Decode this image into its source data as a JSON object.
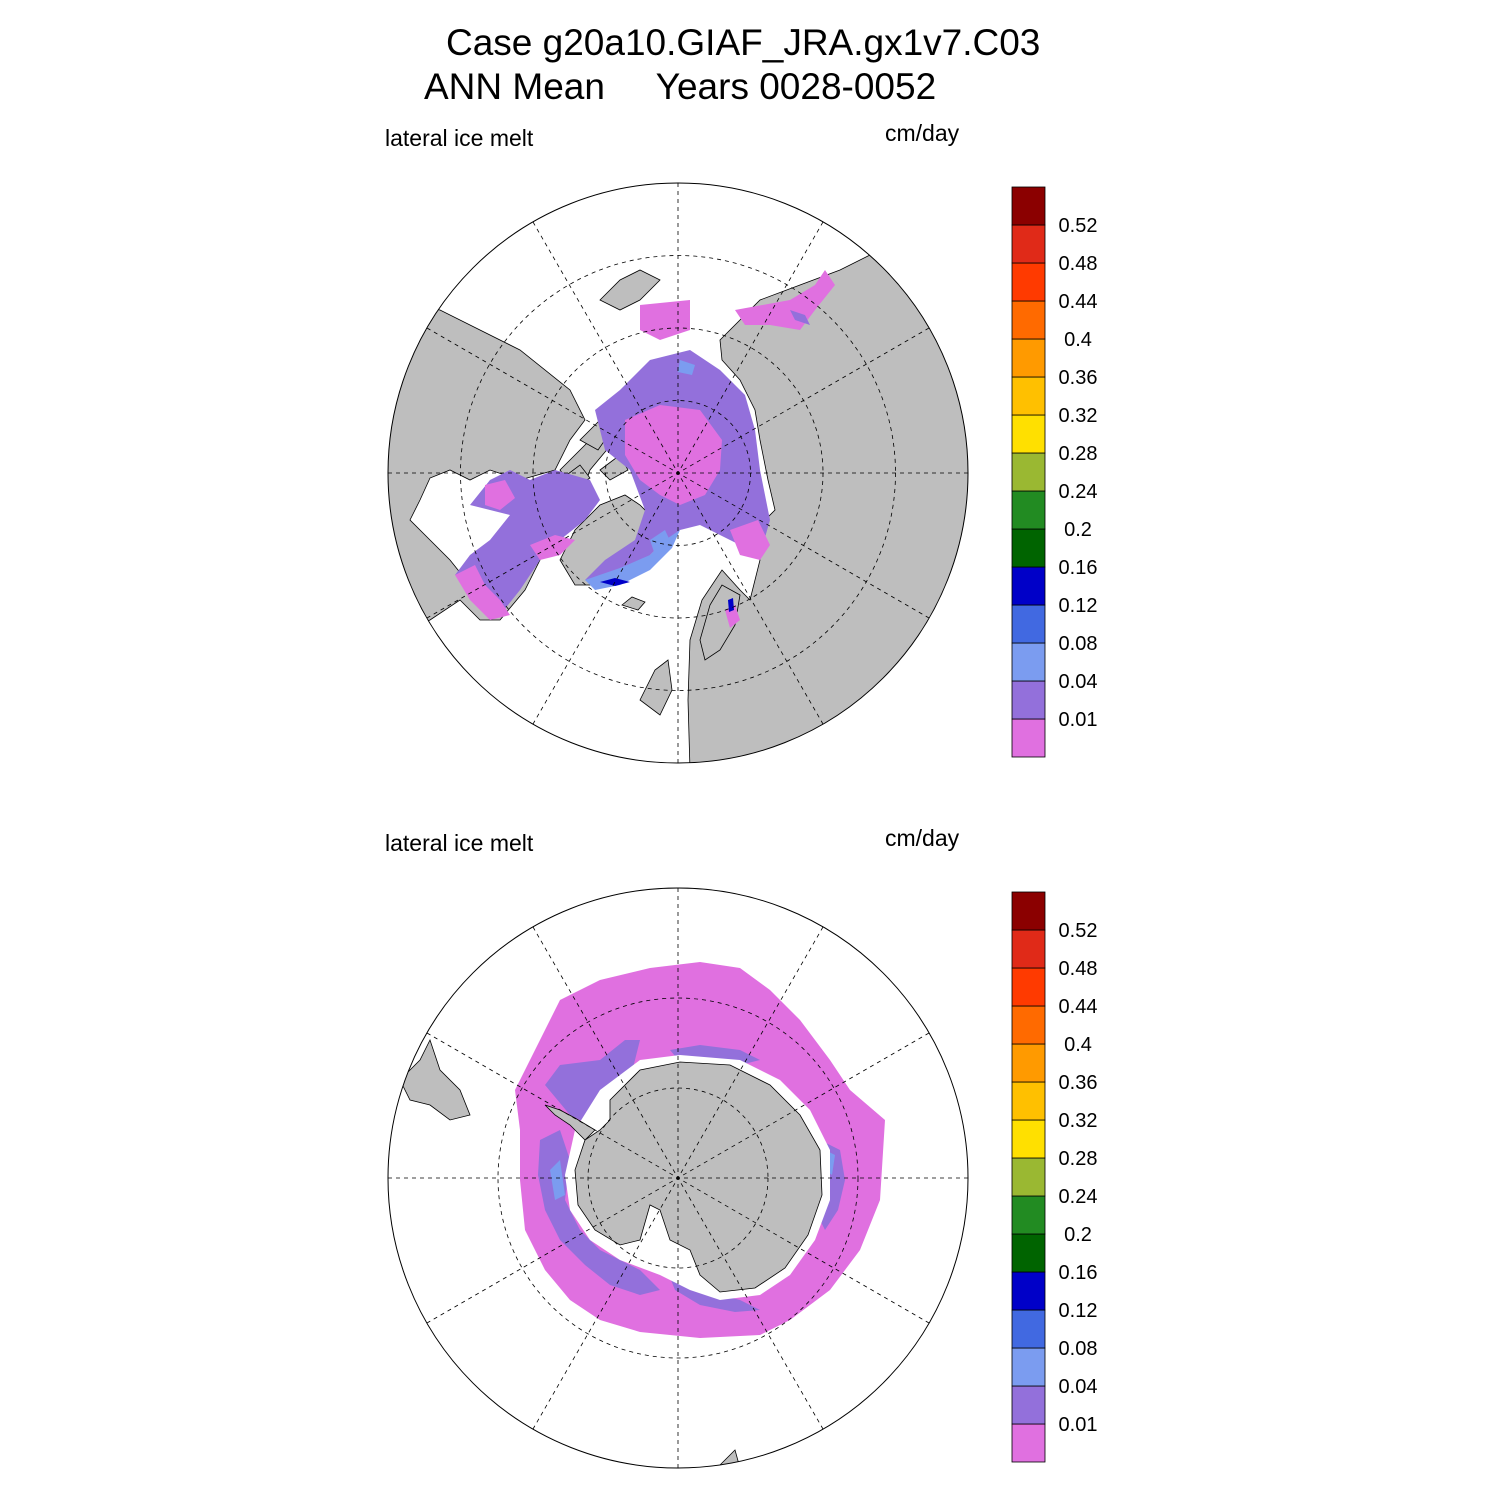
{
  "title": {
    "line1": "Case g20a10.GIAF_JRA.gx1v7.C03",
    "line2": "ANN Mean     Years 0028-0052"
  },
  "panels": [
    {
      "id": "north",
      "variable_label": "lateral ice melt",
      "units_label": "cm/day",
      "hemisphere": "Arctic"
    },
    {
      "id": "south",
      "variable_label": "lateral ice melt",
      "units_label": "cm/day",
      "hemisphere": "Antarctic"
    }
  ],
  "colorbar": {
    "levels": [
      "0.01",
      "0.04",
      "0.08",
      "0.12",
      "0.16",
      "0.2",
      "0.24",
      "0.28",
      "0.32",
      "0.36",
      "0.4",
      "0.44",
      "0.48",
      "0.52"
    ],
    "colors": [
      "#e070e0",
      "#9370db",
      "#7b9cf0",
      "#4169e1",
      "#0000c8",
      "#006400",
      "#228b22",
      "#9ab832",
      "#ffe000",
      "#ffc000",
      "#ff9a00",
      "#ff6a00",
      "#ff3a00",
      "#e02a18",
      "#8b0000"
    ]
  },
  "colors": {
    "land": "#bebebe",
    "ocean": "#ffffff",
    "melt_low": "#e070e0",
    "melt_mid": "#9370db",
    "melt_light_blue": "#7b9cf0",
    "melt_dark_blue": "#0000c8"
  }
}
